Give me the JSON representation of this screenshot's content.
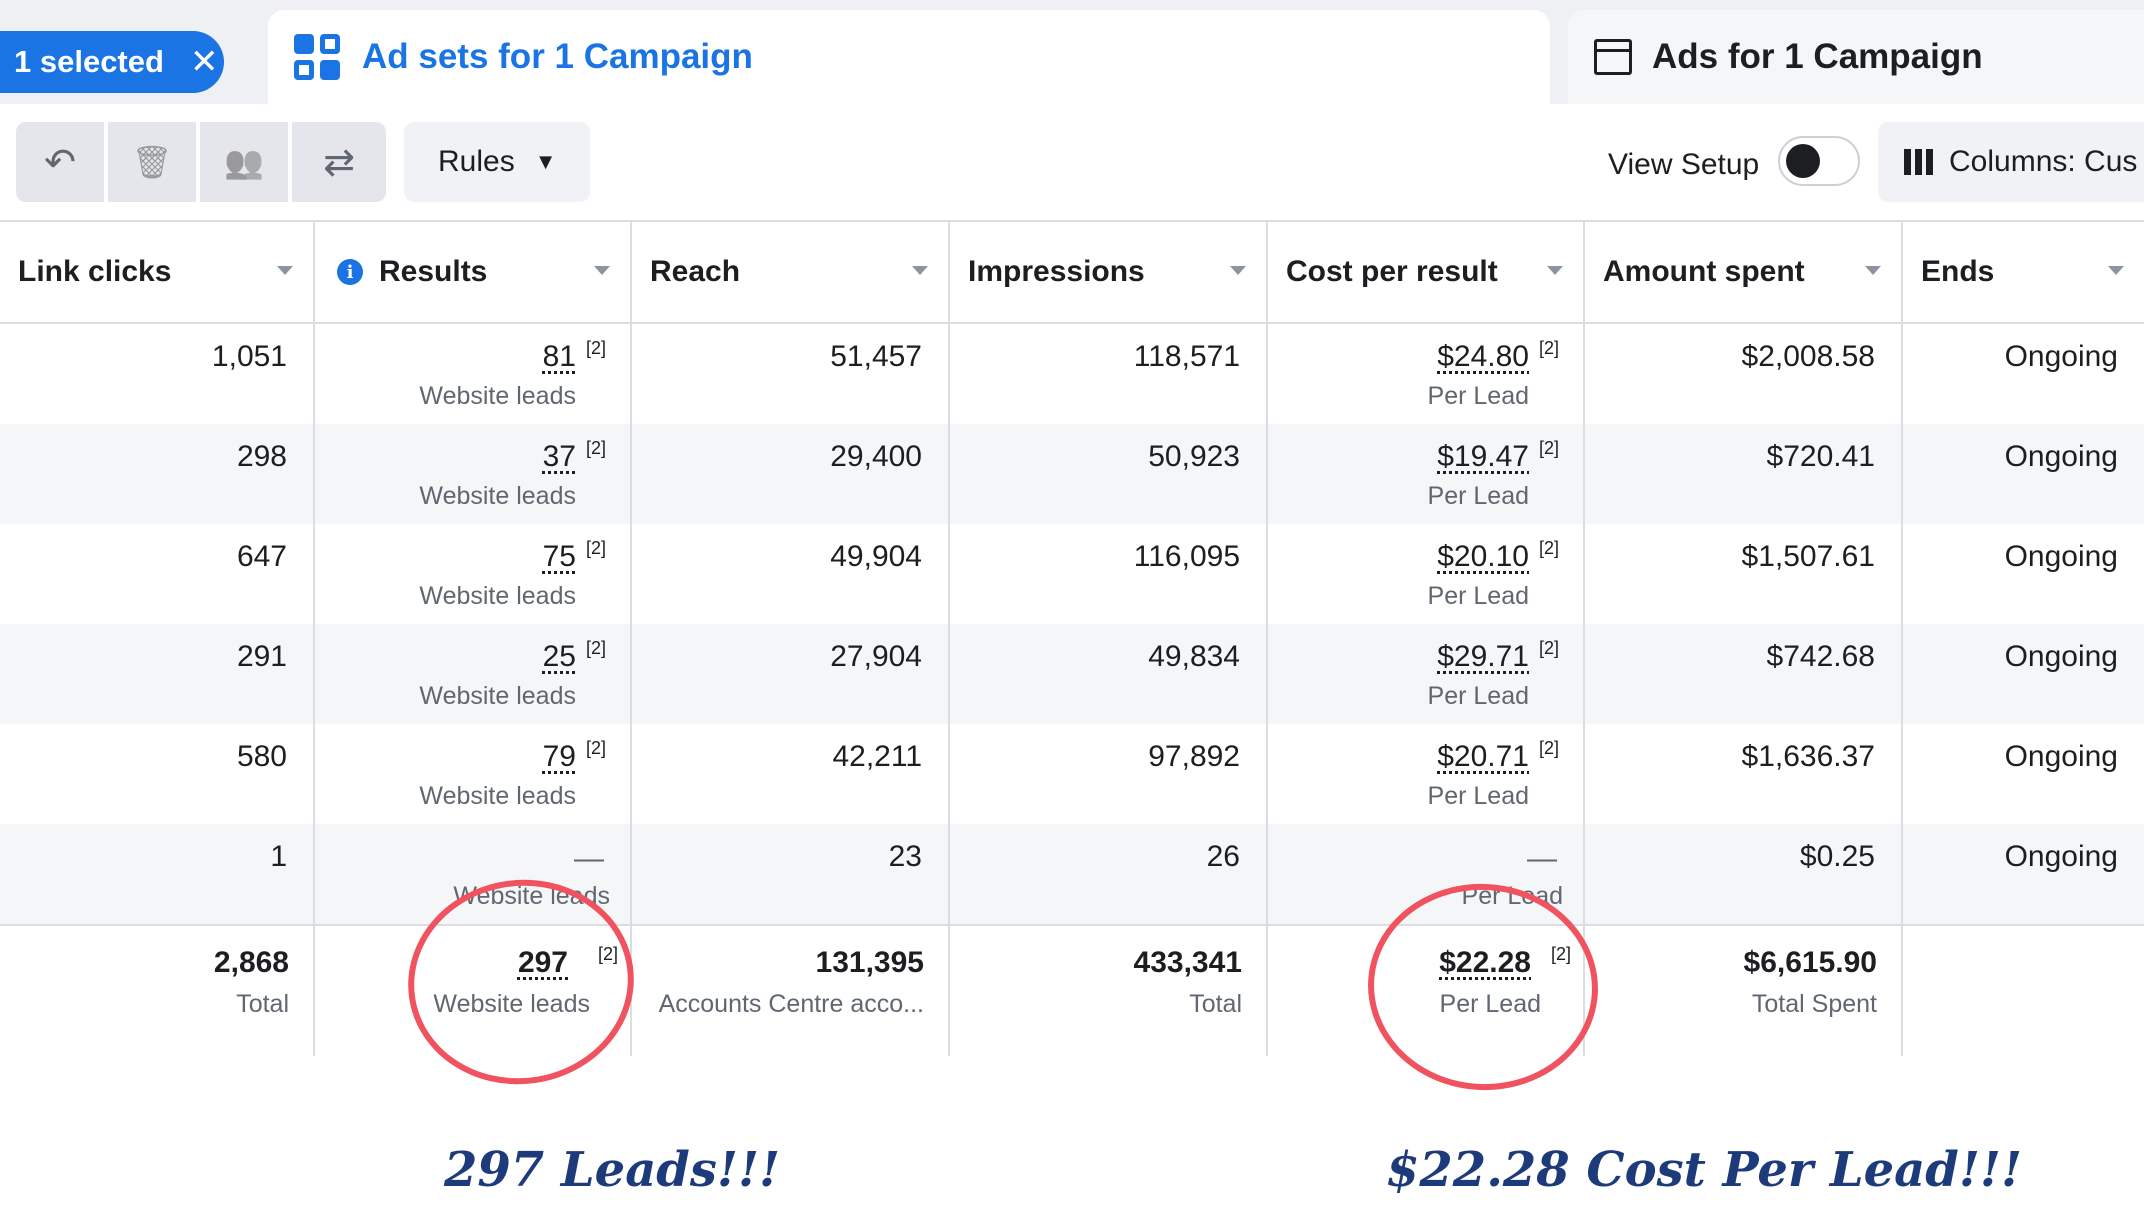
{
  "tabs": {
    "selected_pill": {
      "label": "1 selected",
      "close": "✕"
    },
    "adsets": {
      "label": "Ad sets for 1 Campaign"
    },
    "ads": {
      "label": "Ads for 1 Campaign"
    }
  },
  "toolbar": {
    "undo_icon": "↶",
    "delete_icon": "🗑",
    "audience_icon": "👥",
    "swap_icon": "⇄",
    "rules_label": "Rules",
    "rules_caret": "▼",
    "view_setup_label": "View Setup",
    "columns_label": "Columns: Cus"
  },
  "table": {
    "headers": [
      "Link clicks",
      "Results",
      "Reach",
      "Impressions",
      "Cost per result",
      "Amount spent",
      "Ends"
    ],
    "rows": [
      {
        "link_clicks": "1,051",
        "results": "81",
        "results_sup": "[2]",
        "results_sub": "Website leads",
        "reach": "51,457",
        "impressions": "118,571",
        "cpr": "$24.80",
        "cpr_sup": "[2]",
        "cpr_sub": "Per Lead",
        "spent": "$2,008.58",
        "ends": "Ongoing"
      },
      {
        "link_clicks": "298",
        "results": "37",
        "results_sup": "[2]",
        "results_sub": "Website leads",
        "reach": "29,400",
        "impressions": "50,923",
        "cpr": "$19.47",
        "cpr_sup": "[2]",
        "cpr_sub": "Per Lead",
        "spent": "$720.41",
        "ends": "Ongoing"
      },
      {
        "link_clicks": "647",
        "results": "75",
        "results_sup": "[2]",
        "results_sub": "Website leads",
        "reach": "49,904",
        "impressions": "116,095",
        "cpr": "$20.10",
        "cpr_sup": "[2]",
        "cpr_sub": "Per Lead",
        "spent": "$1,507.61",
        "ends": "Ongoing"
      },
      {
        "link_clicks": "291",
        "results": "25",
        "results_sup": "[2]",
        "results_sub": "Website leads",
        "reach": "27,904",
        "impressions": "49,834",
        "cpr": "$29.71",
        "cpr_sup": "[2]",
        "cpr_sub": "Per Lead",
        "spent": "$742.68",
        "ends": "Ongoing"
      },
      {
        "link_clicks": "580",
        "results": "79",
        "results_sup": "[2]",
        "results_sub": "Website leads",
        "reach": "42,211",
        "impressions": "97,892",
        "cpr": "$20.71",
        "cpr_sup": "[2]",
        "cpr_sub": "Per Lead",
        "spent": "$1,636.37",
        "ends": "Ongoing"
      },
      {
        "link_clicks": "1",
        "results": "—",
        "results_sub": "Website leads",
        "reach": "23",
        "impressions": "26",
        "cpr": "—",
        "cpr_sub": "Per Lead",
        "spent": "$0.25",
        "ends": "Ongoing"
      }
    ],
    "totals": {
      "link_clicks": "2,868",
      "link_clicks_sub": "Total",
      "results": "297",
      "results_sup": "[2]",
      "results_sub": "Website leads",
      "reach": "131,395",
      "reach_sub": "Accounts Centre acco...",
      "impressions": "433,341",
      "impressions_sub": "Total",
      "cpr": "$22.28",
      "cpr_sup": "[2]",
      "cpr_sub": "Per Lead",
      "spent": "$6,615.90",
      "spent_sub": "Total Spent"
    }
  },
  "annotations": {
    "leads_note": "297 Leads!!!",
    "cpl_note": "$22.28 Cost Per Lead!!!",
    "circle_color": "#f0525f"
  },
  "colors": {
    "accent": "#1b74e4"
  }
}
